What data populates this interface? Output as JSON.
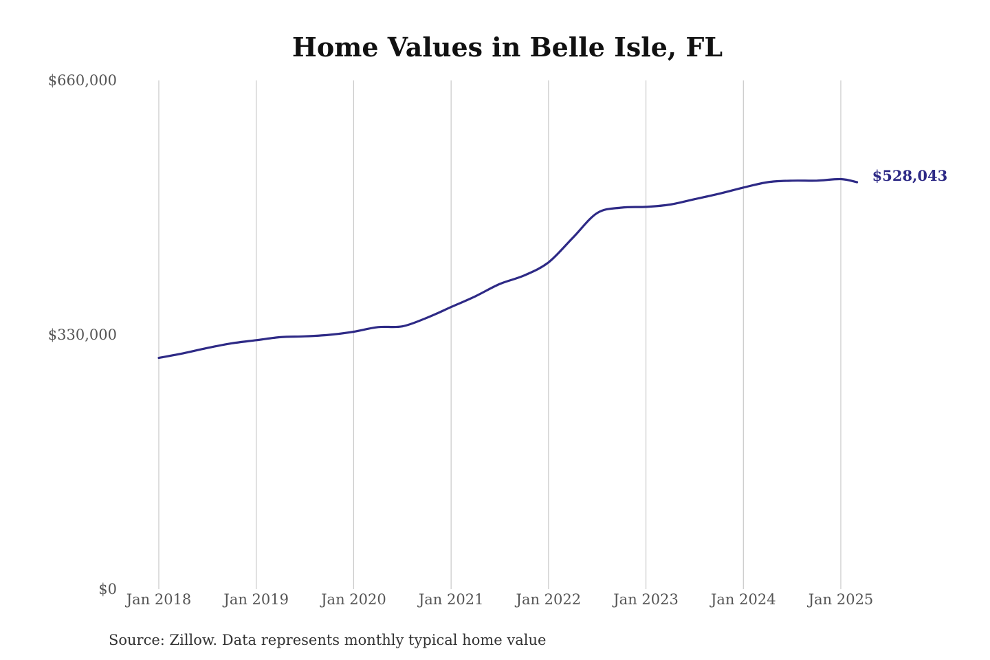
{
  "chart_data": {
    "type": "line",
    "title": "Home Values in Belle Isle, FL",
    "source": "Source: Zillow. Data represents monthly typical home value",
    "ylim": [
      0,
      660000
    ],
    "y_ticks": [
      {
        "value": 0,
        "label": "$0"
      },
      {
        "value": 330000,
        "label": "$330,000"
      },
      {
        "value": 660000,
        "label": "$660,000"
      }
    ],
    "x_ticks": [
      {
        "value": "2018-01",
        "label": "Jan 2018"
      },
      {
        "value": "2019-01",
        "label": "Jan 2019"
      },
      {
        "value": "2020-01",
        "label": "Jan 2020"
      },
      {
        "value": "2021-01",
        "label": "Jan 2021"
      },
      {
        "value": "2022-01",
        "label": "Jan 2022"
      },
      {
        "value": "2023-01",
        "label": "Jan 2023"
      },
      {
        "value": "2024-01",
        "label": "Jan 2024"
      },
      {
        "value": "2025-01",
        "label": "Jan 2025"
      }
    ],
    "grid": {
      "vertical": true,
      "horizontal": false
    },
    "series": [
      {
        "color": "#2e2a86",
        "end_label": "$528,043",
        "points": [
          {
            "x": "2018-01",
            "y": 300000
          },
          {
            "x": "2018-04",
            "y": 306000
          },
          {
            "x": "2018-07",
            "y": 313000
          },
          {
            "x": "2018-10",
            "y": 319000
          },
          {
            "x": "2019-01",
            "y": 323000
          },
          {
            "x": "2019-04",
            "y": 327000
          },
          {
            "x": "2019-07",
            "y": 328000
          },
          {
            "x": "2019-10",
            "y": 330000
          },
          {
            "x": "2020-01",
            "y": 334000
          },
          {
            "x": "2020-04",
            "y": 340000
          },
          {
            "x": "2020-07",
            "y": 341000
          },
          {
            "x": "2020-10",
            "y": 352000
          },
          {
            "x": "2021-01",
            "y": 366000
          },
          {
            "x": "2021-04",
            "y": 380000
          },
          {
            "x": "2021-07",
            "y": 396000
          },
          {
            "x": "2021-10",
            "y": 407000
          },
          {
            "x": "2022-01",
            "y": 424000
          },
          {
            "x": "2022-04",
            "y": 456000
          },
          {
            "x": "2022-07",
            "y": 488000
          },
          {
            "x": "2022-10",
            "y": 495000
          },
          {
            "x": "2023-01",
            "y": 496000
          },
          {
            "x": "2023-04",
            "y": 499000
          },
          {
            "x": "2023-07",
            "y": 506000
          },
          {
            "x": "2023-10",
            "y": 513000
          },
          {
            "x": "2024-01",
            "y": 521000
          },
          {
            "x": "2024-04",
            "y": 528000
          },
          {
            "x": "2024-07",
            "y": 530000
          },
          {
            "x": "2024-10",
            "y": 530000
          },
          {
            "x": "2025-01",
            "y": 532000
          },
          {
            "x": "2025-03",
            "y": 528043
          }
        ]
      }
    ]
  }
}
